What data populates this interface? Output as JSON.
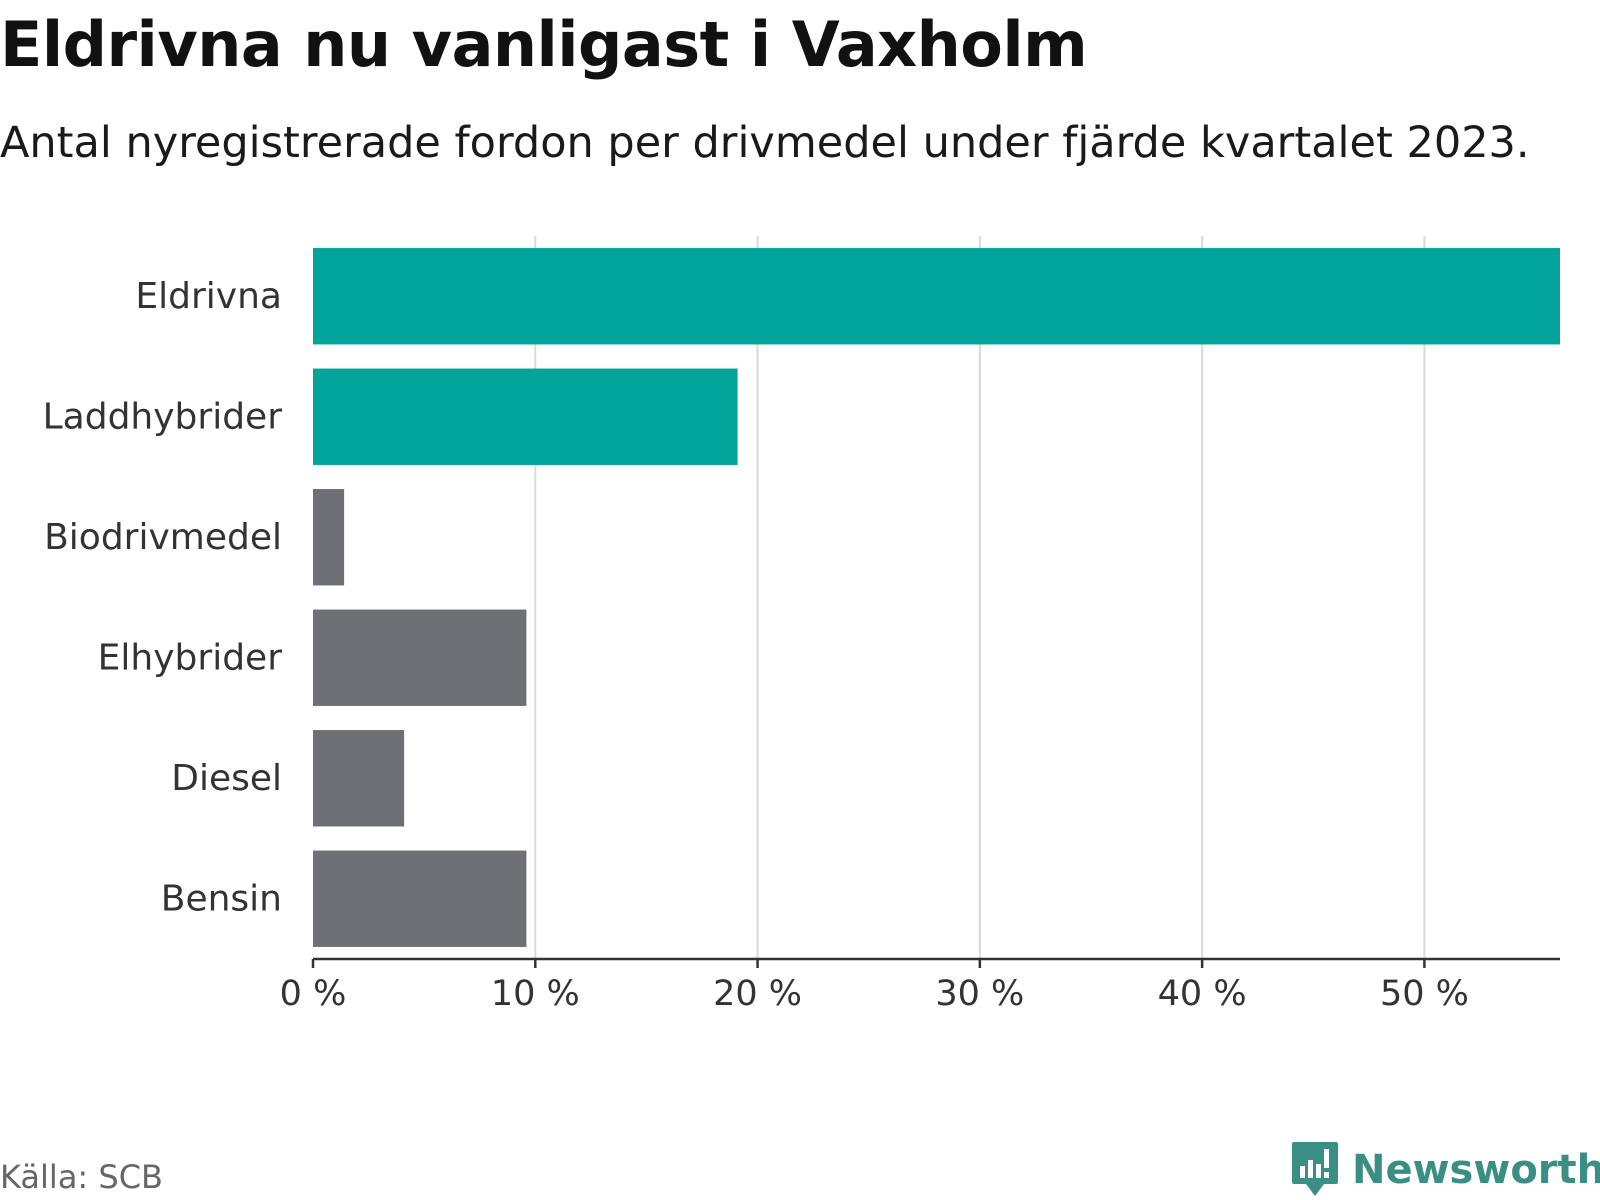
{
  "title": "Eldrivna nu vanligast i Vaxholm",
  "subtitle": "Antal nyregistrerade fordon per drivmedel under fjärde kvartalet 2023.",
  "source": "Källa: SCB",
  "brand": {
    "name": "Newsworthy",
    "logo_icon": "bar-chart-speech-bubble-icon"
  },
  "colors": {
    "highlight": "#00a49a",
    "neutral": "#6f6f76",
    "grid": "#d9d9d9",
    "axis": "#333333",
    "brand": "#3a8f84"
  },
  "chart_data": {
    "type": "bar",
    "orientation": "horizontal",
    "categories": [
      "Eldrivna",
      "Laddhybrider",
      "Biodrivmedel",
      "Elhybrider",
      "Diesel",
      "Bensin"
    ],
    "values": [
      56.1,
      19.1,
      1.4,
      9.6,
      4.1,
      9.6
    ],
    "highlighted": [
      true,
      true,
      false,
      false,
      false,
      false
    ],
    "ticks": [
      "0 %",
      "10 %",
      "20 %",
      "30 %",
      "40 %",
      "50 %"
    ],
    "tick_values": [
      0,
      10,
      20,
      30,
      40,
      50
    ],
    "xlim": [
      0,
      56.1
    ],
    "grid": true,
    "xlabel": "",
    "ylabel": ""
  }
}
